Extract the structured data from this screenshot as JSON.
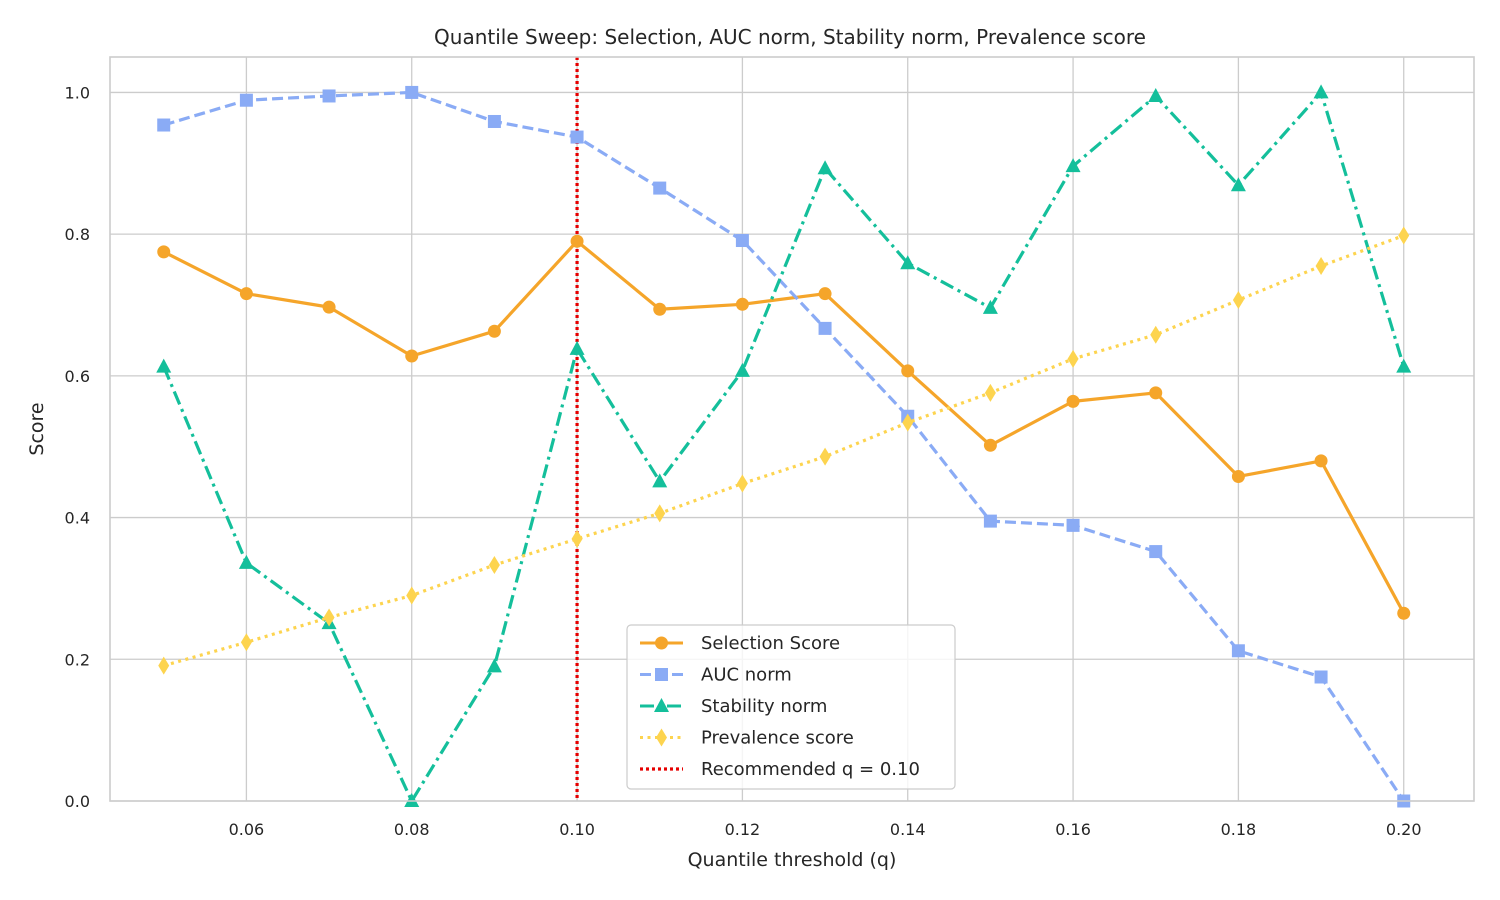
{
  "chart_data": {
    "type": "line",
    "title": "Quantile Sweep: Selection, AUC norm, Stability norm, Prevalence score",
    "xlabel": "Quantile threshold (q)",
    "ylabel": "Score",
    "x": [
      0.05,
      0.06,
      0.07,
      0.08,
      0.09,
      0.1,
      0.11,
      0.12,
      0.13,
      0.14,
      0.15,
      0.16,
      0.17,
      0.18,
      0.19,
      0.2
    ],
    "xlim": [
      0.0435,
      0.2085
    ],
    "ylim": [
      0,
      1.05
    ],
    "xticks": [
      {
        "value": 0.06,
        "label": "0.06"
      },
      {
        "value": 0.08,
        "label": "0.08"
      },
      {
        "value": 0.1,
        "label": "0.10"
      },
      {
        "value": 0.12,
        "label": "0.12"
      },
      {
        "value": 0.14,
        "label": "0.14"
      },
      {
        "value": 0.16,
        "label": "0.16"
      },
      {
        "value": 0.18,
        "label": "0.18"
      },
      {
        "value": 0.2,
        "label": "0.20"
      }
    ],
    "yticks": [
      {
        "value": 0.0,
        "label": "0.0"
      },
      {
        "value": 0.2,
        "label": "0.2"
      },
      {
        "value": 0.4,
        "label": "0.4"
      },
      {
        "value": 0.6,
        "label": "0.6"
      },
      {
        "value": 0.8,
        "label": "0.8"
      },
      {
        "value": 1.0,
        "label": "1.0"
      }
    ],
    "grid": true,
    "legend_position": "lower-center",
    "series": [
      {
        "name": "Selection Score",
        "color": "#f5a52a",
        "dash": "solid",
        "marker": "circle",
        "values": [
          0.775,
          0.716,
          0.697,
          0.628,
          0.663,
          0.79,
          0.694,
          0.701,
          0.716,
          0.607,
          0.502,
          0.564,
          0.576,
          0.458,
          0.48,
          0.265
        ]
      },
      {
        "name": "AUC norm",
        "color": "#8aabf5",
        "dash": "dashed",
        "marker": "square",
        "values": [
          0.954,
          0.989,
          0.995,
          1.0,
          0.959,
          0.937,
          0.865,
          0.791,
          0.667,
          0.543,
          0.395,
          0.389,
          0.352,
          0.212,
          0.175,
          0.0
        ]
      },
      {
        "name": "Stability norm",
        "color": "#14bf9b",
        "dash": "dashdot",
        "marker": "triangle",
        "values": [
          0.613,
          0.336,
          0.251,
          0.0,
          0.19,
          0.638,
          0.451,
          0.607,
          0.893,
          0.759,
          0.696,
          0.896,
          0.995,
          0.869,
          1.0,
          0.613
        ]
      },
      {
        "name": "Prevalence score",
        "color": "#fdd44f",
        "dash": "dotted",
        "marker": "diamond",
        "values": [
          0.191,
          0.224,
          0.259,
          0.29,
          0.333,
          0.37,
          0.406,
          0.448,
          0.486,
          0.534,
          0.576,
          0.624,
          0.658,
          0.707,
          0.755,
          0.798
        ]
      }
    ],
    "reference_line": {
      "name": "Recommended q = 0.10",
      "x": 0.1,
      "color": "#e60000",
      "dash": "dotted"
    }
  }
}
